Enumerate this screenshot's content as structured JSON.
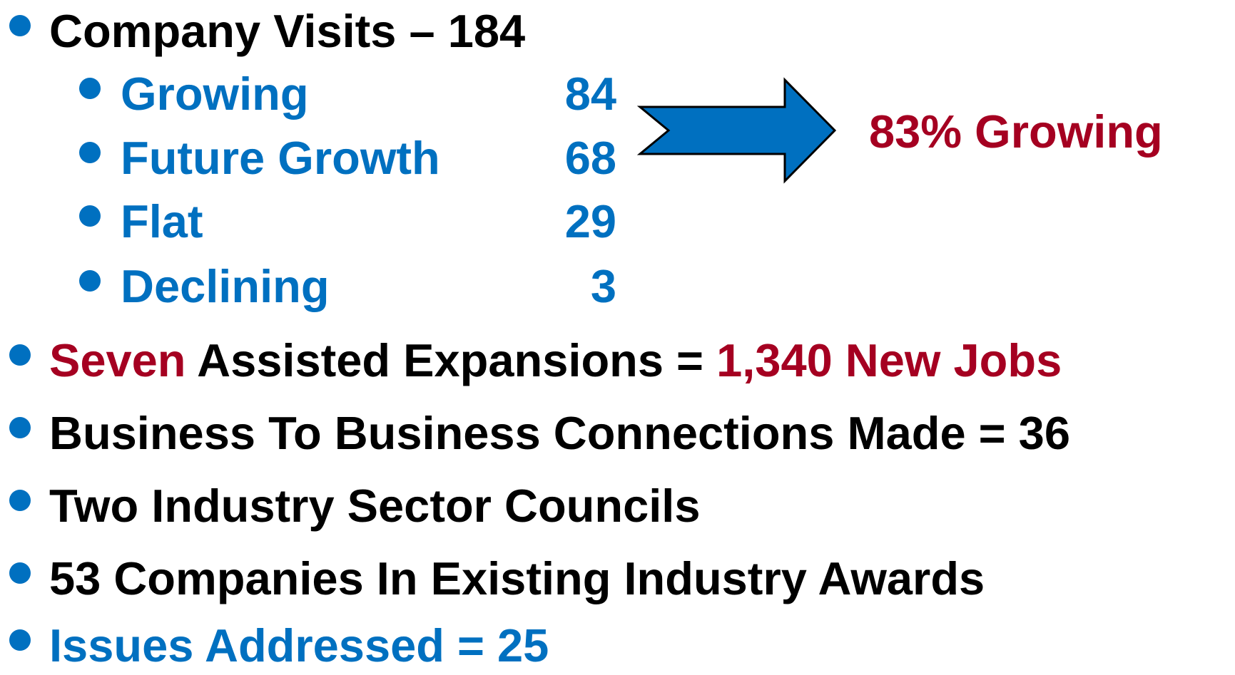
{
  "bullets": [
    {
      "parts": [
        {
          "text": "Company Visits – 184",
          "color": "#000000"
        }
      ],
      "sub": [
        {
          "label": "Growing",
          "value": 84
        },
        {
          "label": "Future Growth",
          "value": 68
        },
        {
          "label": "Flat",
          "value": 29
        },
        {
          "label": "Declining",
          "value": 3
        }
      ]
    },
    {
      "parts": [
        {
          "text": "Seven",
          "color": "#a50021"
        },
        {
          "text": " Assisted Expansions = ",
          "color": "#000000"
        },
        {
          "text": "1,340 New Jobs",
          "color": "#a50021"
        }
      ]
    },
    {
      "parts": [
        {
          "text": "Business To Business Connections Made = 36",
          "color": "#000000"
        }
      ]
    },
    {
      "parts": [
        {
          "text": "Two Industry Sector Councils",
          "color": "#000000"
        }
      ]
    },
    {
      "parts": [
        {
          "text": "53 Companies In Existing Industry Awards",
          "color": "#000000"
        }
      ]
    },
    {
      "parts": [
        {
          "text": "Issues Addressed = 25",
          "color": "#0070c0"
        }
      ]
    }
  ],
  "sub_color": "#0070c0",
  "callout": {
    "text": "83% Growing",
    "color": "#a50021"
  }
}
